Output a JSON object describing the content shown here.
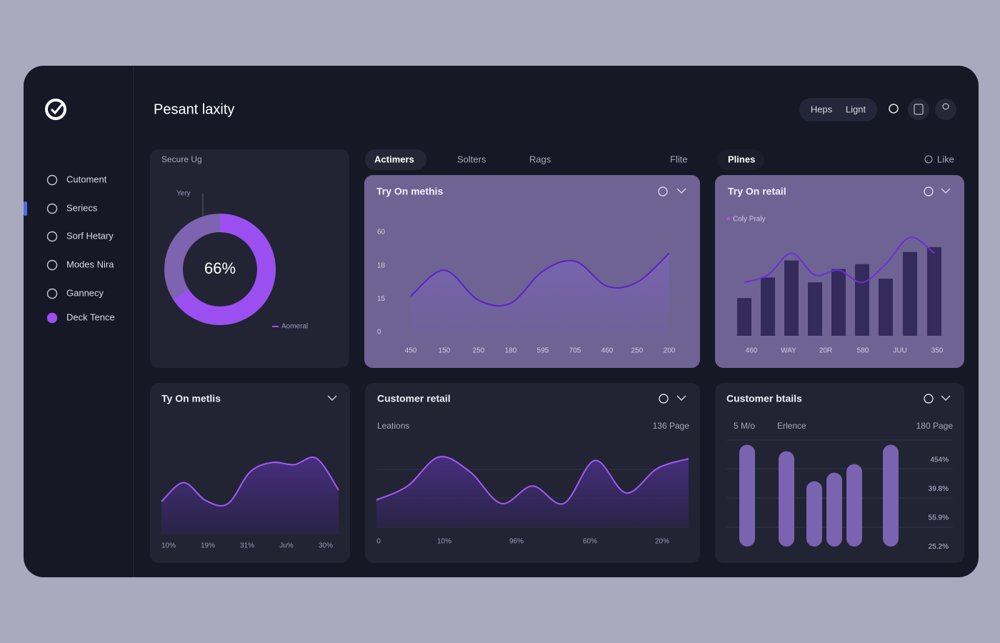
{
  "header": {
    "title": "Pesant laxity",
    "buttons": [
      "Heps",
      "Lignt"
    ]
  },
  "sidebar": {
    "items": [
      "Cutoment",
      "Seriecs",
      "Sorf Hetary",
      "Modes Nira",
      "Gannecy",
      "Deck Tence"
    ]
  },
  "tabs": {
    "left": [
      "Actimers",
      "Solters",
      "Rags",
      "Flite"
    ],
    "right": [
      "Plines",
      "Like"
    ]
  },
  "donut": {
    "title": "Secure Ug",
    "label": "Yery",
    "value": 66,
    "value_label": "66%",
    "legend": "Aomeral"
  },
  "trend": {
    "title": "Try On methis",
    "y_labels": [
      "60",
      "18",
      "15",
      "0"
    ],
    "x_labels": [
      "450",
      "150",
      "250",
      "180",
      "595",
      "705",
      "460",
      "250",
      "200"
    ],
    "values": [
      36,
      62,
      32,
      29,
      61,
      71,
      46,
      50,
      79
    ],
    "ylim": [
      0,
      100
    ]
  },
  "retail": {
    "title": "Try On retail",
    "legend": "Coly Praly",
    "x_labels": [
      "460",
      "WAY",
      "20R",
      "580",
      "JUU",
      "350"
    ],
    "bars": [
      31,
      48,
      62,
      44,
      55,
      59,
      47,
      69,
      73
    ],
    "line": [
      44,
      50,
      68,
      50,
      54,
      44,
      59,
      81,
      68
    ],
    "ylim": [
      0,
      100
    ]
  },
  "metrics": {
    "title": "Ty On metlis",
    "x_labels": [
      "10%",
      "19%",
      "31%",
      "Ju%",
      "30%"
    ],
    "values": [
      31,
      49,
      32,
      29,
      59,
      68,
      66,
      72,
      42
    ],
    "ylim": [
      0,
      100
    ]
  },
  "customer": {
    "title": "Customer retail",
    "subtitle": "Leations",
    "note": "136 Page",
    "x_labels": [
      "0",
      "10%",
      "96%",
      "60%",
      "20%"
    ],
    "values": [
      31,
      47,
      80,
      63,
      27,
      47,
      27,
      76,
      39,
      67,
      78
    ],
    "ylim": [
      0,
      100
    ]
  },
  "details": {
    "title": "Customer btails",
    "labels": [
      "5 M/o",
      "Erlence"
    ],
    "note": "180 Page",
    "y_labels": [
      "454%",
      "39.8%",
      "55.9%",
      "25.2%"
    ],
    "values": [
      95,
      89,
      61,
      69,
      77,
      95
    ],
    "ylim": [
      0,
      100
    ]
  }
}
